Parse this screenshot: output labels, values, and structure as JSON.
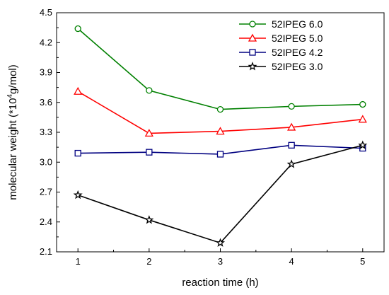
{
  "chart_data": {
    "type": "line",
    "xlabel": "reaction time (h)",
    "ylabel": {
      "pre": "molecular weight  (*10",
      "sup": "4",
      "post": "g/mol)"
    },
    "x": [
      1,
      2,
      3,
      4,
      5
    ],
    "xlim": [
      0.7,
      5.3
    ],
    "ylim": [
      2.1,
      4.5
    ],
    "xticks": [
      "1",
      "2",
      "3",
      "4",
      "5"
    ],
    "yticks": [
      "2.1",
      "2.4",
      "2.7",
      "3.0",
      "3.3",
      "3.6",
      "3.9",
      "4.2",
      "4.5"
    ],
    "legend_position": "top-right",
    "grid": false,
    "series": [
      {
        "name": "52IPEG 6.0",
        "color": "#008000",
        "marker": "circle",
        "values": [
          4.34,
          3.72,
          3.53,
          3.56,
          3.58
        ]
      },
      {
        "name": "52IPEG 5.0",
        "color": "#ff0000",
        "marker": "triangle",
        "values": [
          3.71,
          3.29,
          3.31,
          3.35,
          3.43
        ]
      },
      {
        "name": "52IPEG 4.2",
        "color": "#000080",
        "marker": "square",
        "values": [
          3.09,
          3.1,
          3.08,
          3.17,
          3.14
        ]
      },
      {
        "name": "52IPEG 3.0",
        "color": "#000000",
        "marker": "star",
        "values": [
          2.67,
          2.42,
          2.19,
          2.98,
          3.17
        ]
      }
    ]
  }
}
